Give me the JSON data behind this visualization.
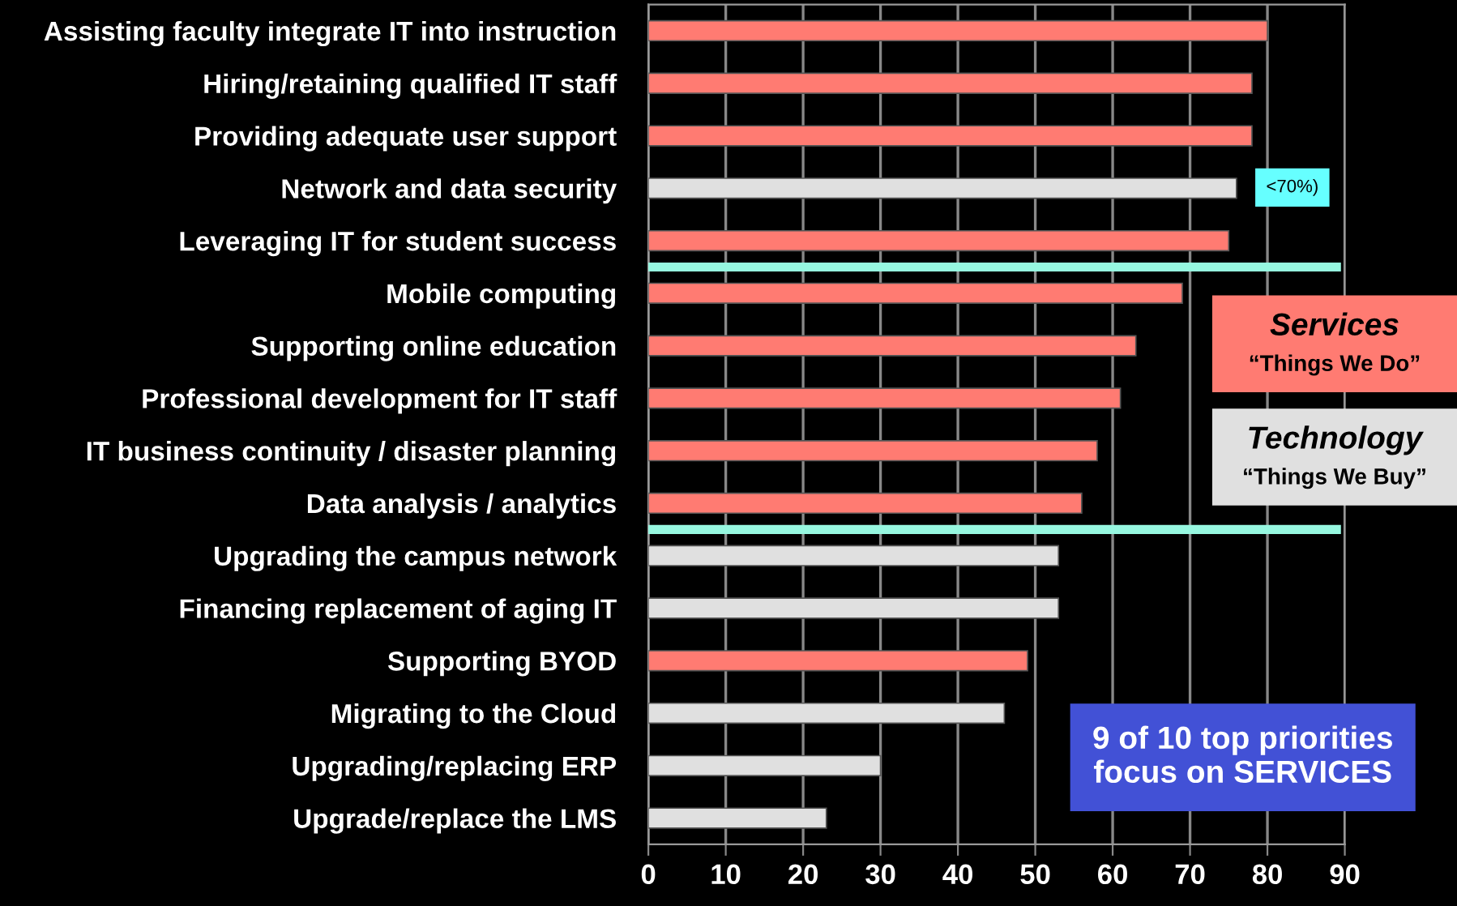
{
  "chart_data": {
    "type": "bar",
    "orientation": "horizontal",
    "categories": [
      "Assisting faculty integrate IT into instruction",
      "Hiring/retaining qualified IT staff",
      "Providing adequate user support",
      "Network and data security",
      "Leveraging IT for student success",
      "Mobile computing",
      "Supporting online education",
      "Professional development for IT staff",
      "IT business continuity / disaster planning",
      "Data analysis / analytics",
      "Upgrading the campus network",
      "Financing replacement of aging IT",
      "Supporting BYOD",
      "Migrating to the Cloud",
      "Upgrading/replacing ERP",
      "Upgrade/replace the LMS"
    ],
    "series": [
      {
        "name": "Services\n“Things We Do”",
        "color": "#ff7b72",
        "values": [
          80,
          78,
          78,
          null,
          75,
          69,
          63,
          61,
          58,
          56,
          null,
          null,
          49,
          null,
          null,
          null
        ]
      },
      {
        "name": "Technology\n“Things We Buy”",
        "color": "#e0e0e0",
        "values": [
          null,
          null,
          null,
          76,
          null,
          null,
          null,
          null,
          null,
          null,
          53,
          53,
          null,
          46,
          30,
          23
        ]
      }
    ],
    "xlim": [
      0,
      90
    ],
    "xticks": [
      0,
      10,
      20,
      30,
      40,
      50,
      60,
      70,
      80,
      90
    ],
    "grid": "x",
    "legend": "right",
    "ref_lines": [
      {
        "axis": "y",
        "value": "Leveraging IT for student success",
        "color": "#96f7e0"
      },
      {
        "axis": "y",
        "value": "Data analysis / analytics",
        "color": "#96f7e0"
      }
    ],
    "annotations": [
      "<70%)",
      "9 of 10 top priorities\nfocus on SERVICES"
    ]
  }
}
